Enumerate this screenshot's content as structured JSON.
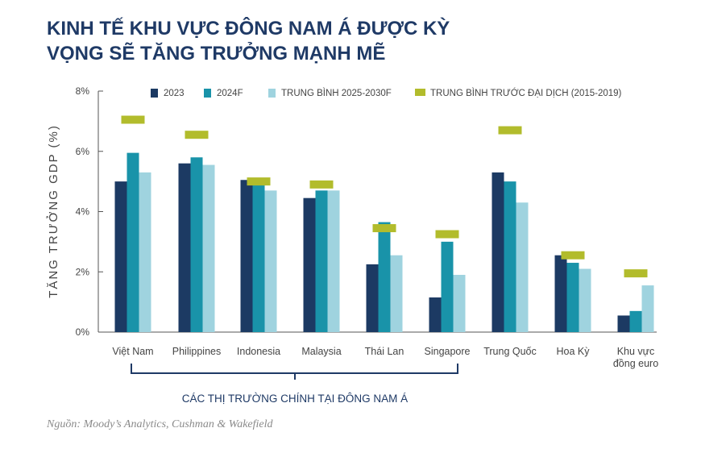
{
  "title_lines": [
    "KINH TẾ KHU VỰC ĐÔNG NAM Á ĐƯỢC KỲ",
    "VỌNG SẼ TĂNG TRƯỞNG MẠNH MẼ"
  ],
  "source": "Nguồn: Moody’s Analytics, Cushman & Wakefield",
  "colors": {
    "title": "#1f3a66",
    "s2023": "#1c3a63",
    "s2024": "#1993a9",
    "savg": "#9fd3df",
    "spre": "#b2bc2c"
  },
  "chart_data": {
    "type": "bar",
    "ylabel": "TĂNG TRƯỞNG GDP (%)",
    "ylim": [
      0,
      8
    ],
    "yticks": [
      "0%",
      "2%",
      "4%",
      "6%",
      "8%"
    ],
    "ytick_values": [
      0,
      2,
      4,
      6,
      8
    ],
    "grid": false,
    "legend_position": "top",
    "categories": [
      "Việt Nam",
      "Philippines",
      "Indonesia",
      "Malaysia",
      "Thái Lan",
      "Singapore",
      "Trung Quốc",
      "Hoa Kỳ",
      "Khu vực đồng euro"
    ],
    "category_lines": [
      [
        "Việt Nam"
      ],
      [
        "Philippines"
      ],
      [
        "Indonesia"
      ],
      [
        "Malaysia"
      ],
      [
        "Thái Lan"
      ],
      [
        "Singapore"
      ],
      [
        "Trung Quốc"
      ],
      [
        "Hoa Kỳ"
      ],
      [
        "Khu vực",
        "đồng euro"
      ]
    ],
    "series": [
      {
        "name": "2023",
        "type": "bar",
        "values": [
          5.0,
          5.6,
          5.05,
          4.45,
          2.25,
          1.15,
          5.3,
          2.55,
          0.55
        ]
      },
      {
        "name": "2024F",
        "type": "bar",
        "values": [
          5.95,
          5.8,
          4.95,
          4.7,
          3.65,
          3.0,
          5.0,
          2.3,
          0.7
        ]
      },
      {
        "name": "TRUNG BÌNH 2025-2030F",
        "type": "bar",
        "values": [
          5.3,
          5.55,
          4.7,
          4.7,
          2.55,
          1.9,
          4.3,
          2.1,
          1.55
        ]
      },
      {
        "name": "TRUNG BÌNH TRƯỚC ĐẠI DỊCH (2015-2019)",
        "type": "marker",
        "values": [
          7.05,
          6.55,
          5.0,
          4.9,
          3.45,
          3.25,
          6.7,
          2.55,
          1.95
        ]
      }
    ],
    "bracket_label": "CÁC THỊ TRƯỜNG CHÍNH TẠI ĐÔNG NAM Á",
    "bracket_span": [
      "Việt Nam",
      "Singapore"
    ]
  }
}
